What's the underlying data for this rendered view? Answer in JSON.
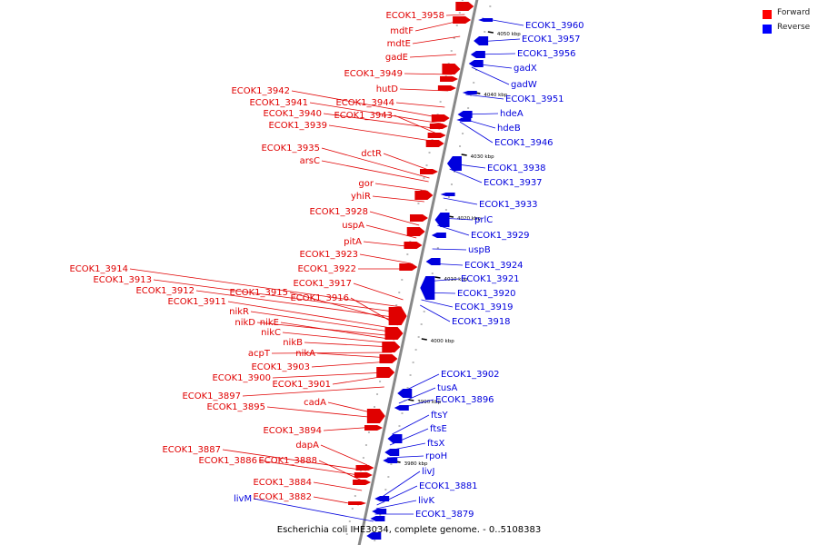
{
  "caption": "Escherichia coli IHE3034, complete genome. - 0..5108383",
  "legend": [
    {
      "label": "Forward",
      "color": "#ff0000"
    },
    {
      "label": "Reverse",
      "color": "#0000ff"
    }
  ],
  "colors": {
    "forward": "#e00000",
    "reverse": "#0000dd",
    "axis": "#888888"
  },
  "ticks": [
    {
      "label": "4050 kbp"
    },
    {
      "label": "4040 kbp"
    },
    {
      "label": "4030 kbp"
    },
    {
      "label": "4020 kbp"
    },
    {
      "label": "4010 kbp"
    },
    {
      "label": "4000 kbp"
    },
    {
      "label": "3990 kbp"
    },
    {
      "label": "3980 kbp"
    }
  ],
  "forward_genes": [
    "ECOK1_3958",
    "mdtF",
    "mdtE",
    "gadE",
    "ECOK1_3949",
    "hutD",
    "ECOK1_3942",
    "ECOK1_3944",
    "ECOK1_3941",
    "ECOK1_3940",
    "ECOK1_3943",
    "ECOK1_3939",
    "dctR",
    "ECOK1_3935",
    "arsC",
    "gor",
    "yhiR",
    "ECOK1_3928",
    "uspA",
    "pitA",
    "ECOK1_3923",
    "ECOK1_3922",
    "ECOK1_3914",
    "ECOK1_3913",
    "ECOK1_3917",
    "ECOK1_3912",
    "ECOK1_3915",
    "ECOK1_3916",
    "ECOK1_3911",
    "nikR",
    "nikD",
    "nikE",
    "nikC",
    "nikB",
    "acpT",
    "nikA",
    "ECOK1_3903",
    "ECOK1_3900",
    "ECOK1_3901",
    "ECOK1_3897",
    "cadA",
    "ECOK1_3895",
    "ECOK1_3894",
    "dapA",
    "ECOK1_3887",
    "ECOK1_3886",
    "ECOK1_3888",
    "ECOK1_3884",
    "ECOK1_3882"
  ],
  "reverse_genes": [
    "ECOK1_3960",
    "ECOK1_3957",
    "ECOK1_3956",
    "gadX",
    "gadW",
    "ECOK1_3951",
    "hdeA",
    "hdeB",
    "ECOK1_3946",
    "ECOK1_3938",
    "ECOK1_3937",
    "ECOK1_3933",
    "prlC",
    "ECOK1_3929",
    "uspB",
    "ECOK1_3924",
    "ECOK1_3921",
    "ECOK1_3920",
    "ECOK1_3919",
    "ECOK1_3918",
    "ECOK1_3902",
    "tusA",
    "ECOK1_3896",
    "ftsY",
    "ftsE",
    "ftsX",
    "rpoH",
    "livJ",
    "ECOK1_3881",
    "livK",
    "ECOK1_3879",
    "livM"
  ]
}
